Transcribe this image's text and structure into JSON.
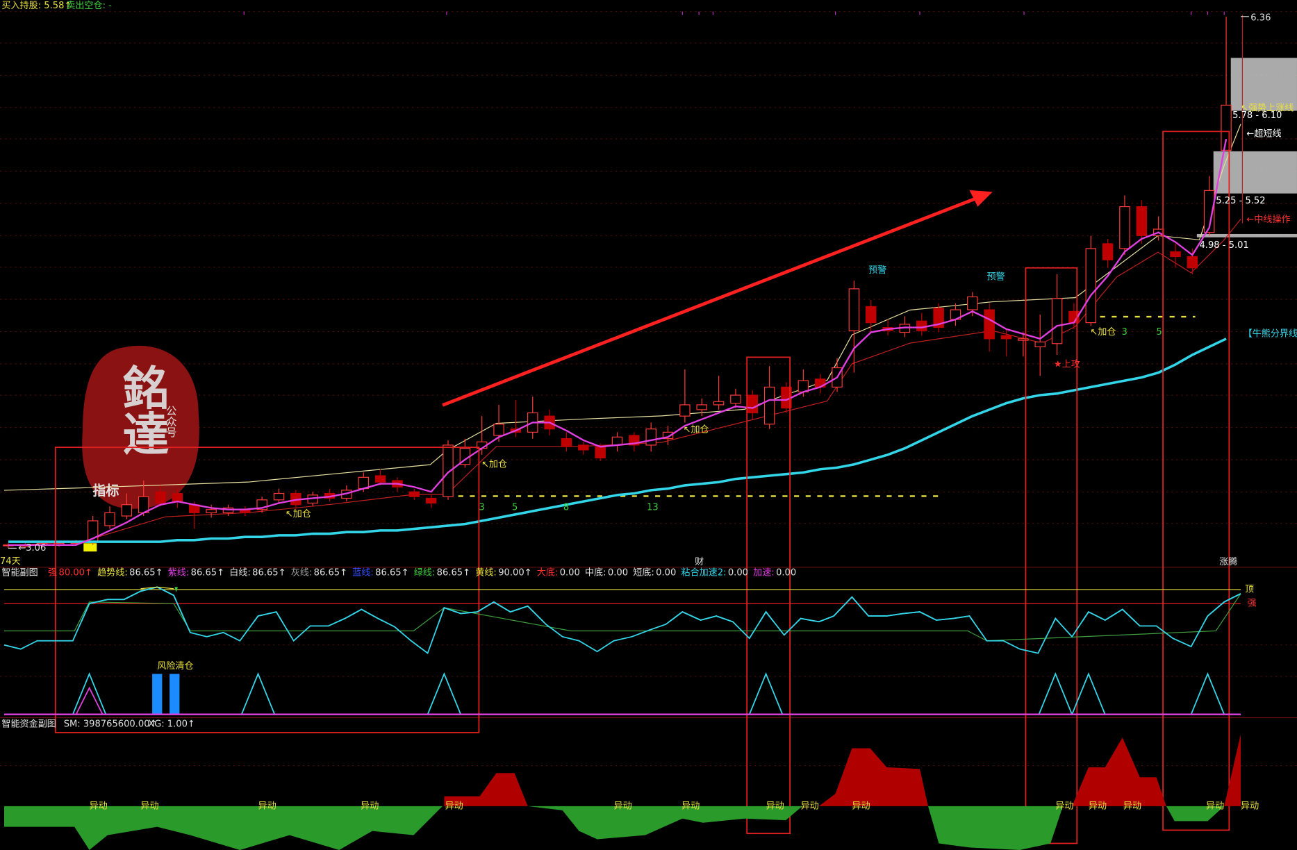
{
  "header": {
    "buy": "买入持股: 5.58↑",
    "sell": "卖出空仓: -"
  },
  "price_chart": {
    "type": "candlestick",
    "range": [
      {
        "value": 3.06,
        "label": "←3.06"
      },
      6.36
    ],
    "days": "74天",
    "candles": [
      [
        3.08,
        3.09,
        3.06,
        3.08
      ],
      [
        3.07,
        3.09,
        3.06,
        3.08
      ],
      [
        3.08,
        3.1,
        3.07,
        3.09
      ],
      [
        3.08,
        3.1,
        3.07,
        3.09
      ],
      [
        3.09,
        3.11,
        3.08,
        3.1
      ],
      [
        3.1,
        3.26,
        3.08,
        3.23
      ],
      [
        3.2,
        3.32,
        3.18,
        3.28
      ],
      [
        3.26,
        3.4,
        3.24,
        3.33
      ],
      [
        3.28,
        3.48,
        3.26,
        3.38
      ],
      [
        3.41,
        3.45,
        3.32,
        3.34
      ],
      [
        3.4,
        3.43,
        3.31,
        3.35
      ],
      [
        3.33,
        3.35,
        3.18,
        3.28
      ],
      [
        3.28,
        3.33,
        3.25,
        3.3
      ],
      [
        3.28,
        3.33,
        3.26,
        3.31
      ],
      [
        3.3,
        3.32,
        3.26,
        3.28
      ],
      [
        3.3,
        3.38,
        3.28,
        3.36
      ],
      [
        3.36,
        3.43,
        3.34,
        3.4
      ],
      [
        3.4,
        3.42,
        3.3,
        3.33
      ],
      [
        3.34,
        3.41,
        3.32,
        3.39
      ],
      [
        3.4,
        3.43,
        3.35,
        3.37
      ],
      [
        3.37,
        3.45,
        3.35,
        3.42
      ],
      [
        3.43,
        3.53,
        3.41,
        3.5
      ],
      [
        3.51,
        3.55,
        3.45,
        3.47
      ],
      [
        3.48,
        3.5,
        3.41,
        3.44
      ],
      [
        3.41,
        3.43,
        3.36,
        3.38
      ],
      [
        3.37,
        3.39,
        3.31,
        3.34
      ],
      [
        3.38,
        3.73,
        3.36,
        3.7
      ],
      [
        3.58,
        3.74,
        3.56,
        3.68
      ],
      [
        3.68,
        3.88,
        3.64,
        3.72
      ],
      [
        3.76,
        3.95,
        3.72,
        3.83
      ],
      [
        3.8,
        3.98,
        3.75,
        3.78
      ],
      [
        3.78,
        4.0,
        3.74,
        3.9
      ],
      [
        3.88,
        3.92,
        3.76,
        3.8
      ],
      [
        3.74,
        3.78,
        3.66,
        3.69
      ],
      [
        3.7,
        3.72,
        3.64,
        3.67
      ],
      [
        3.69,
        3.71,
        3.6,
        3.62
      ],
      [
        3.7,
        3.78,
        3.66,
        3.75
      ],
      [
        3.76,
        3.78,
        3.66,
        3.7
      ],
      [
        3.7,
        3.84,
        3.66,
        3.8
      ],
      [
        3.74,
        3.82,
        3.7,
        3.78
      ],
      [
        3.88,
        4.17,
        3.84,
        3.95
      ],
      [
        3.92,
        3.99,
        3.88,
        3.95
      ],
      [
        3.95,
        4.13,
        3.92,
        3.97
      ],
      [
        3.96,
        4.05,
        3.93,
        4.01
      ],
      [
        4.01,
        4.04,
        3.86,
        3.9
      ],
      [
        3.83,
        4.19,
        3.8,
        4.06
      ],
      [
        4.06,
        4.09,
        3.9,
        3.93
      ],
      [
        4.03,
        4.17,
        4.0,
        4.1
      ],
      [
        4.11,
        4.14,
        4.02,
        4.06
      ],
      [
        4.06,
        4.24,
        4.03,
        4.18
      ],
      [
        4.41,
        4.72,
        4.15,
        4.67
      ],
      [
        4.56,
        4.6,
        4.4,
        4.46
      ],
      [
        4.43,
        4.48,
        4.38,
        4.41
      ],
      [
        4.4,
        4.5,
        4.37,
        4.45
      ],
      [
        4.47,
        4.52,
        4.38,
        4.41
      ],
      [
        4.55,
        4.58,
        4.4,
        4.43
      ],
      [
        4.48,
        4.58,
        4.44,
        4.54
      ],
      [
        4.54,
        4.65,
        4.5,
        4.62
      ],
      [
        4.54,
        4.58,
        4.28,
        4.36
      ],
      [
        4.38,
        4.42,
        4.25,
        4.36
      ],
      [
        4.35,
        4.4,
        4.25,
        4.36
      ],
      [
        4.31,
        4.51,
        4.13,
        4.34
      ],
      [
        4.33,
        4.76,
        4.26,
        4.61
      ],
      [
        4.53,
        4.58,
        4.42,
        4.46
      ],
      [
        4.46,
        5.0,
        4.44,
        4.92
      ],
      [
        4.95,
        4.98,
        4.8,
        4.85
      ],
      [
        4.92,
        5.25,
        4.88,
        5.18
      ],
      [
        5.18,
        5.22,
        4.95,
        5.0
      ],
      [
        5.0,
        5.12,
        4.97,
        5.04
      ],
      [
        4.9,
        4.95,
        4.8,
        4.87
      ],
      [
        4.87,
        4.92,
        4.76,
        4.8
      ],
      [
        5.02,
        5.37,
        5.0,
        5.28
      ],
      [
        5.53,
        6.36,
        5.53,
        5.81
      ]
    ],
    "lines": [
      {
        "label": "【牛熊分界线】",
        "color": "#33d6e8",
        "values": [
          3.1,
          3.1,
          3.1,
          3.1,
          3.1,
          3.1,
          3.1,
          3.1,
          3.1,
          3.1,
          3.11,
          3.11,
          3.12,
          3.12,
          3.13,
          3.13,
          3.14,
          3.14,
          3.15,
          3.15,
          3.16,
          3.16,
          3.17,
          3.17,
          3.18,
          3.19,
          3.2,
          3.21,
          3.23,
          3.25,
          3.27,
          3.29,
          3.31,
          3.33,
          3.35,
          3.37,
          3.39,
          3.4,
          3.42,
          3.43,
          3.45,
          3.46,
          3.47,
          3.49,
          3.5,
          3.51,
          3.52,
          3.53,
          3.55,
          3.56,
          3.58,
          3.61,
          3.64,
          3.68,
          3.73,
          3.78,
          3.83,
          3.88,
          3.92,
          3.96,
          3.99,
          4.01,
          4.02,
          4.04,
          4.06,
          4.08,
          4.1,
          4.12,
          4.15,
          4.2,
          4.26,
          4.31,
          4.36
        ]
      },
      {
        "color": "#e040e0",
        "values": [
          3.08,
          3.08,
          3.08,
          3.08,
          3.08,
          3.12,
          3.17,
          3.22,
          3.28,
          3.33,
          3.35,
          3.33,
          3.31,
          3.3,
          3.3,
          3.31,
          3.34,
          3.36,
          3.37,
          3.38,
          3.4,
          3.43,
          3.46,
          3.46,
          3.44,
          3.41,
          3.53,
          3.61,
          3.68,
          3.75,
          3.79,
          3.84,
          3.84,
          3.79,
          3.73,
          3.69,
          3.7,
          3.71,
          3.73,
          3.75,
          3.82,
          3.86,
          3.9,
          3.94,
          3.93,
          3.98,
          3.98,
          4.03,
          4.06,
          4.12,
          4.3,
          4.4,
          4.42,
          4.43,
          4.43,
          4.45,
          4.48,
          4.53,
          4.48,
          4.42,
          4.39,
          4.36,
          4.44,
          4.46,
          4.63,
          4.75,
          4.9,
          4.98,
          5.02,
          4.96,
          4.88,
          5.05,
          5.6
        ]
      }
    ],
    "annotations": {
      "add": "↖加仓",
      "warn": "预警",
      "attack": "★上攻",
      "fib": [
        "3",
        "5",
        "8",
        "13"
      ],
      "cai": "财",
      "zt": "涨腾",
      "zone_high": "5.78 - 6.10",
      "zone_mid": "5.25 - 5.52",
      "zone_low": "4.98 - 5.01",
      "short": "←超短线",
      "mid": "←中线操作",
      "strong": "↖强势上涨线"
    }
  },
  "watermark": {
    "title": "銘達",
    "sub": "公众号",
    "tag": "指标"
  },
  "indicator": {
    "title": "智能副图",
    "items": [
      {
        "name": "强",
        "value": "80.00↑",
        "color": "#ff3030"
      },
      {
        "name": "趋势线:",
        "value": "86.65↑",
        "color": "#e8e040"
      },
      {
        "name": "紫线:",
        "value": "86.65↑",
        "color": "#e040e0"
      },
      {
        "name": "白线:",
        "value": "86.65↑",
        "color": "#e0e0e0"
      },
      {
        "name": "灰线:",
        "value": "86.65↑",
        "color": "#a0a0a0"
      },
      {
        "name": "蓝线:",
        "value": "86.65↑",
        "color": "#3050ff"
      },
      {
        "name": "绿线:",
        "value": "86.65↑",
        "color": "#40d040"
      },
      {
        "name": "黄线:",
        "value": "90.00↑",
        "color": "#e8e040"
      },
      {
        "name": "大底:",
        "value": "0.00",
        "color": "#ff3030"
      },
      {
        "name": "中底:",
        "value": "0.00",
        "color": "#e0e0e0"
      },
      {
        "name": "短底:",
        "value": "0.00",
        "color": "#e0e0e0"
      },
      {
        "name": "粘合加速2:",
        "value": "0.00",
        "color": "#33d6e8"
      },
      {
        "name": "加速:",
        "value": "0.00",
        "color": "#e040e0"
      }
    ],
    "top": "顶",
    "strong": "强",
    "risk": "风险清仓"
  },
  "fund": {
    "title": "智能资金副图",
    "sm": "SM: 398765600.00↑",
    "xg": "XG: 1.00↑",
    "signal": "异动"
  }
}
